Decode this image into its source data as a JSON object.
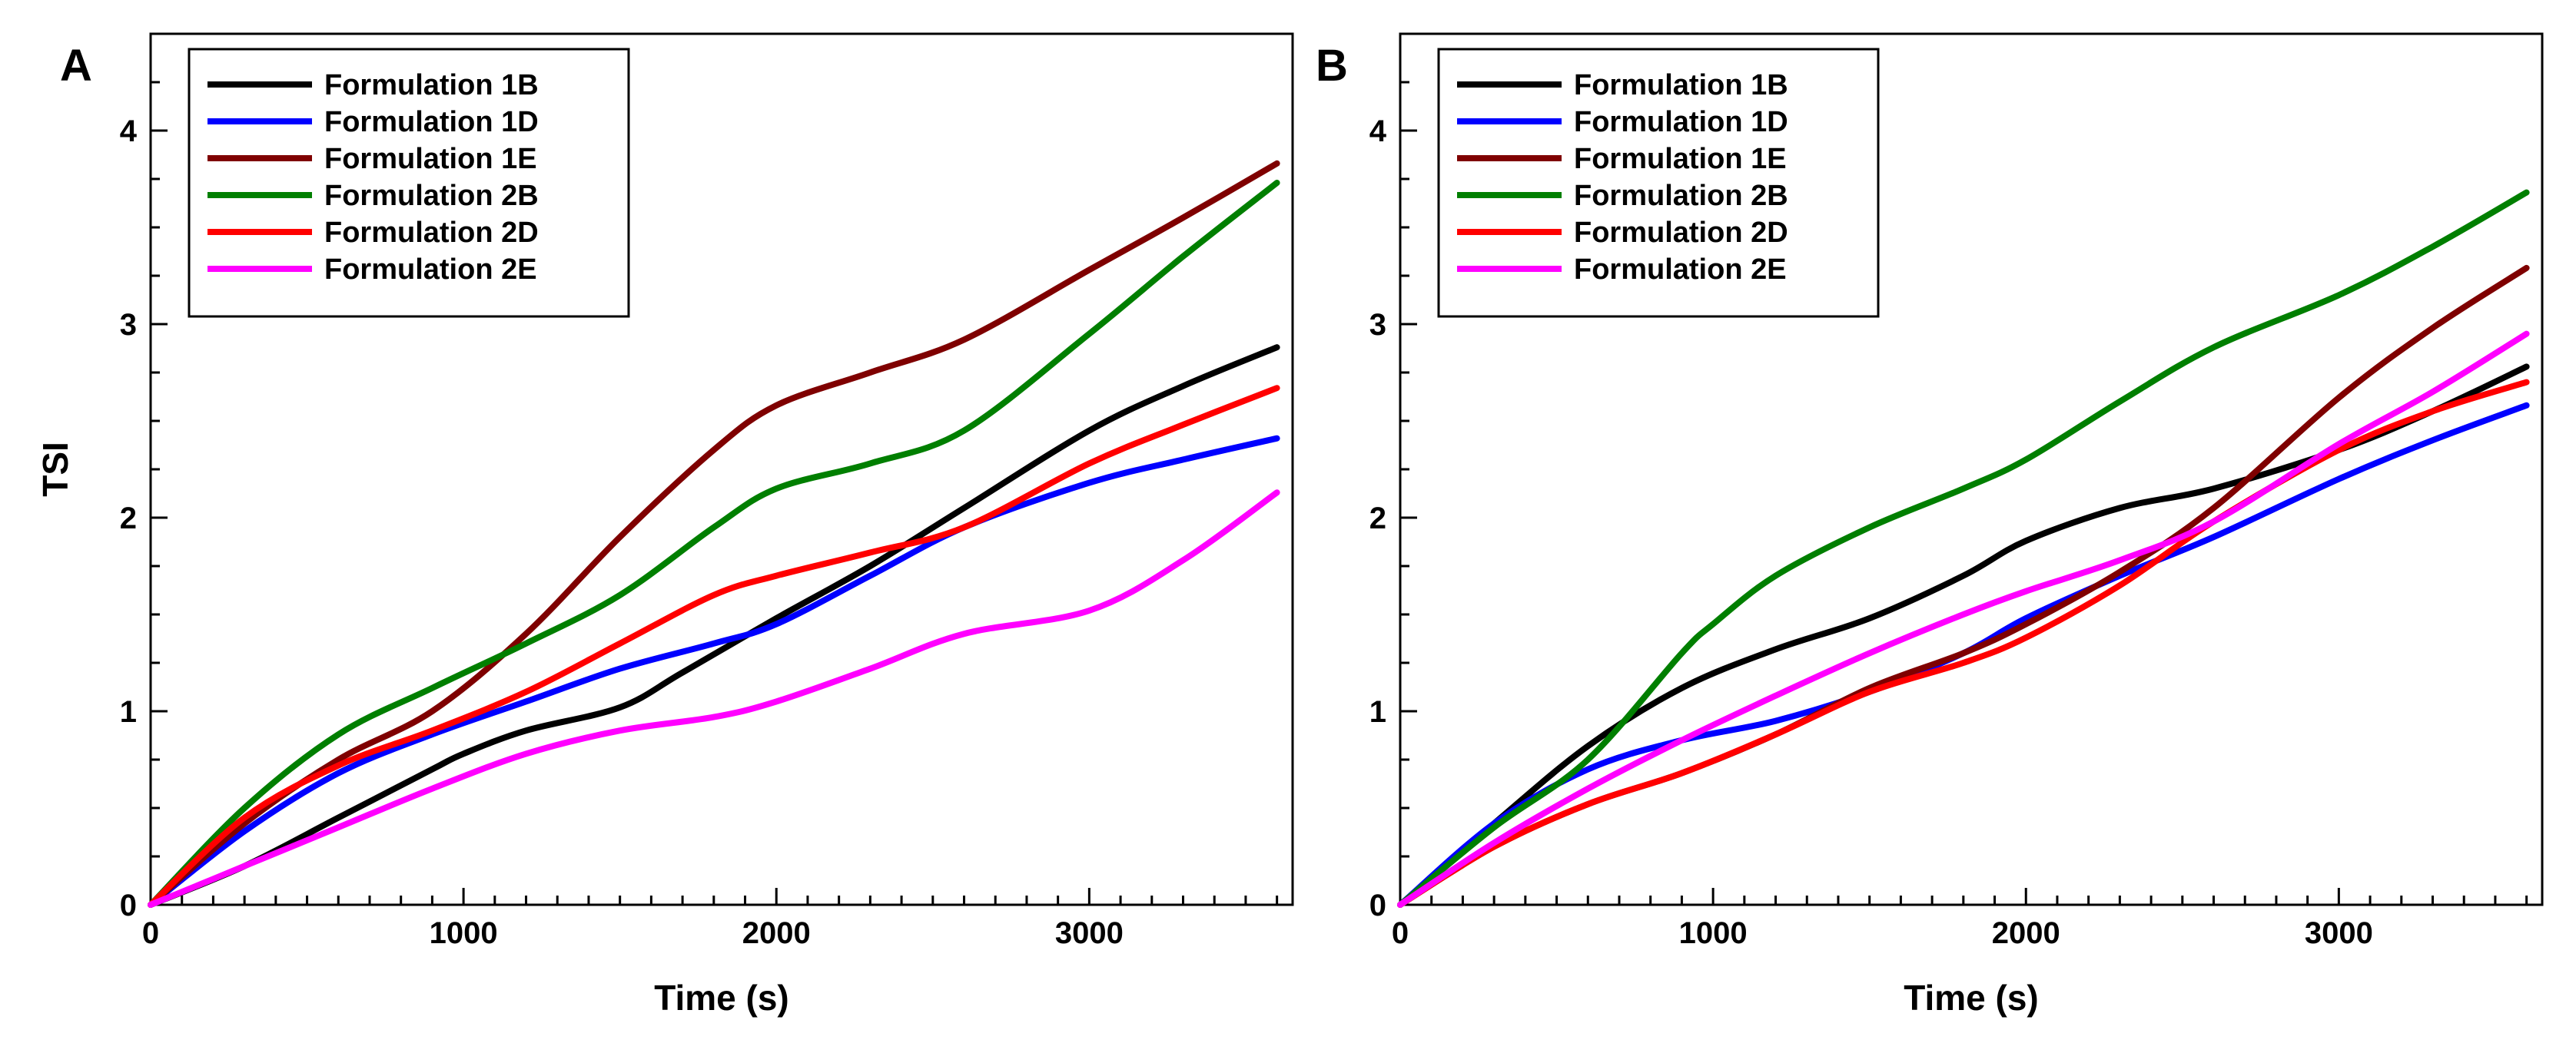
{
  "chart_data": [
    {
      "panel": "A",
      "type": "line",
      "title": "",
      "xlabel": "Time (s)",
      "ylabel": "TSI",
      "xlim": [
        0,
        3650
      ],
      "ylim": [
        0,
        4.5
      ],
      "xticks": [
        0,
        1000,
        2000,
        3000
      ],
      "yticks": [
        0,
        1,
        2,
        3,
        4
      ],
      "legend_position": "top-left",
      "series": [
        {
          "name": "Formulation 1B",
          "color": "#000000",
          "x": [
            0,
            300,
            600,
            900,
            1000,
            1200,
            1500,
            1700,
            2000,
            2300,
            2600,
            3000,
            3300,
            3600
          ],
          "y": [
            0,
            0.2,
            0.45,
            0.7,
            0.78,
            0.9,
            1.02,
            1.2,
            1.48,
            1.75,
            2.05,
            2.45,
            2.68,
            2.88
          ]
        },
        {
          "name": "Formulation 1D",
          "color": "#0000ff",
          "x": [
            0,
            300,
            600,
            900,
            1200,
            1500,
            1800,
            2000,
            2300,
            2600,
            3000,
            3300,
            3600
          ],
          "y": [
            0,
            0.38,
            0.68,
            0.88,
            1.05,
            1.22,
            1.35,
            1.45,
            1.7,
            1.95,
            2.18,
            2.3,
            2.41
          ]
        },
        {
          "name": "Formulation 1E",
          "color": "#7f0000",
          "x": [
            0,
            300,
            600,
            900,
            1200,
            1500,
            1800,
            2000,
            2300,
            2600,
            3000,
            3300,
            3600
          ],
          "y": [
            0,
            0.42,
            0.75,
            1.0,
            1.4,
            1.9,
            2.35,
            2.58,
            2.75,
            2.92,
            3.28,
            3.55,
            3.83
          ]
        },
        {
          "name": "Formulation 2B",
          "color": "#007f00",
          "x": [
            0,
            300,
            600,
            900,
            1200,
            1500,
            1800,
            2000,
            2300,
            2600,
            3000,
            3300,
            3600
          ],
          "y": [
            0,
            0.5,
            0.88,
            1.12,
            1.35,
            1.6,
            1.95,
            2.15,
            2.28,
            2.45,
            2.95,
            3.35,
            3.73
          ]
        },
        {
          "name": "Formulation 2D",
          "color": "#ff0000",
          "x": [
            0,
            300,
            600,
            900,
            1200,
            1500,
            1800,
            2000,
            2300,
            2600,
            3000,
            3300,
            3600
          ],
          "y": [
            0,
            0.45,
            0.72,
            0.9,
            1.1,
            1.35,
            1.6,
            1.7,
            1.82,
            1.95,
            2.28,
            2.48,
            2.67
          ]
        },
        {
          "name": "Formulation 2E",
          "color": "#ff00ff",
          "x": [
            0,
            300,
            600,
            900,
            1200,
            1500,
            1800,
            2000,
            2300,
            2600,
            3000,
            3300,
            3600
          ],
          "y": [
            0,
            0.2,
            0.4,
            0.6,
            0.78,
            0.9,
            0.97,
            1.05,
            1.22,
            1.4,
            1.52,
            1.78,
            2.13
          ]
        }
      ]
    },
    {
      "panel": "B",
      "type": "line",
      "title": "",
      "xlabel": "Time (s)",
      "ylabel": "",
      "xlim": [
        0,
        3650
      ],
      "ylim": [
        0,
        4.5
      ],
      "xticks": [
        0,
        1000,
        2000,
        3000
      ],
      "yticks": [
        0,
        1,
        2,
        3,
        4
      ],
      "legend_position": "top-left",
      "series": [
        {
          "name": "Formulation 1B",
          "color": "#000000",
          "x": [
            0,
            300,
            600,
            900,
            1200,
            1500,
            1800,
            2000,
            2300,
            2600,
            3000,
            3300,
            3600
          ],
          "y": [
            0,
            0.42,
            0.82,
            1.12,
            1.32,
            1.48,
            1.7,
            1.88,
            2.05,
            2.15,
            2.35,
            2.55,
            2.78
          ]
        },
        {
          "name": "Formulation 1D",
          "color": "#0000ff",
          "x": [
            0,
            300,
            600,
            900,
            1200,
            1500,
            1800,
            2000,
            2300,
            2600,
            3000,
            3300,
            3600
          ],
          "y": [
            0,
            0.42,
            0.7,
            0.85,
            0.95,
            1.1,
            1.3,
            1.48,
            1.7,
            1.9,
            2.2,
            2.4,
            2.58
          ]
        },
        {
          "name": "Formulation 1E",
          "color": "#7f0000",
          "x": [
            0,
            300,
            600,
            900,
            1200,
            1500,
            1800,
            2000,
            2300,
            2600,
            3000,
            3300,
            3600
          ],
          "y": [
            0,
            0.3,
            0.52,
            0.68,
            0.88,
            1.12,
            1.3,
            1.45,
            1.72,
            2.05,
            2.62,
            2.98,
            3.29
          ]
        },
        {
          "name": "Formulation 2B",
          "color": "#007f00",
          "x": [
            0,
            300,
            600,
            900,
            1000,
            1200,
            1500,
            1800,
            2000,
            2300,
            2600,
            3000,
            3300,
            3600
          ],
          "y": [
            0,
            0.4,
            0.75,
            1.3,
            1.45,
            1.7,
            1.95,
            2.15,
            2.3,
            2.6,
            2.88,
            3.15,
            3.4,
            3.68
          ]
        },
        {
          "name": "Formulation 2D",
          "color": "#ff0000",
          "x": [
            0,
            300,
            600,
            900,
            1200,
            1500,
            1800,
            2000,
            2300,
            2600,
            3000,
            3300,
            3600
          ],
          "y": [
            0,
            0.3,
            0.52,
            0.68,
            0.88,
            1.1,
            1.25,
            1.38,
            1.65,
            1.98,
            2.35,
            2.55,
            2.7
          ]
        },
        {
          "name": "Formulation 2E",
          "color": "#ff00ff",
          "x": [
            0,
            300,
            600,
            900,
            1200,
            1500,
            1800,
            2000,
            2300,
            2600,
            3000,
            3300,
            3600
          ],
          "y": [
            0,
            0.32,
            0.6,
            0.85,
            1.08,
            1.3,
            1.5,
            1.62,
            1.78,
            1.98,
            2.38,
            2.65,
            2.95
          ]
        }
      ]
    }
  ]
}
